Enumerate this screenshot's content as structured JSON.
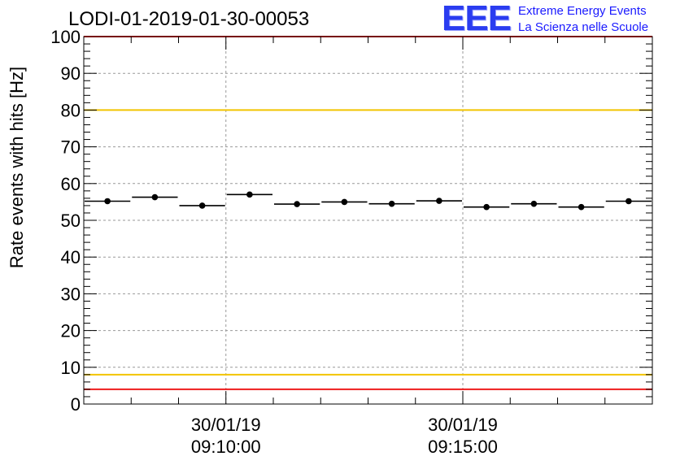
{
  "chart_data": {
    "type": "scatter",
    "title": "LODI-01-2019-01-30-00053",
    "xlabel": "",
    "ylabel": "Rate events with hits [Hz]",
    "ylim": [
      0,
      100
    ],
    "yticks": [
      "0",
      "10",
      "20",
      "30",
      "40",
      "50",
      "60",
      "70",
      "80",
      "90",
      "100"
    ],
    "xlim_minutes": [
      0,
      12
    ],
    "xticks": [
      {
        "date": "30/01/19",
        "time": "09:10:00"
      },
      {
        "date": "30/01/19",
        "time": "09:15:00"
      }
    ],
    "series": [
      {
        "name": "",
        "bin_width_minutes": 1,
        "x_minutes": [
          0.5,
          1.5,
          2.5,
          3.5,
          4.5,
          5.5,
          6.5,
          7.5,
          8.5,
          9.5,
          10.5,
          11.5
        ],
        "values": [
          55.2,
          56.3,
          54.0,
          57.0,
          54.4,
          55.0,
          54.5,
          55.3,
          53.6,
          54.5,
          53.6,
          55.2
        ]
      }
    ],
    "reference_lines": [
      {
        "y": 100,
        "color": "#ee1c1c"
      },
      {
        "y": 80,
        "color": "#f2c400"
      },
      {
        "y": 8,
        "color": "#f2c400"
      },
      {
        "y": 4,
        "color": "#ee1c1c"
      }
    ],
    "grid": true
  },
  "logo": {
    "text": "EEE",
    "line1": "Extreme Energy Events",
    "line2": "La Scienza nelle Scuole"
  }
}
